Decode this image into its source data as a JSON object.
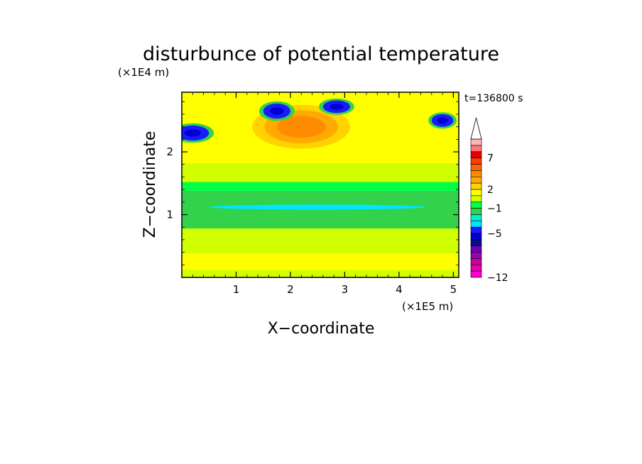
{
  "chart_data": {
    "type": "heatmap",
    "title": "disturbunce of potential temperature",
    "xlabel": "X−coordinate",
    "ylabel": "Z−coordinate",
    "x_unit": "(×1E5 m)",
    "y_unit": "(×1E4 m)",
    "time_label": "t=136800 s",
    "xlim": [
      0,
      5.1
    ],
    "ylim": [
      0,
      2.95
    ],
    "xticks": [
      1,
      2,
      3,
      4,
      5
    ],
    "yticks": [
      1,
      2
    ],
    "colorbar": {
      "levels": [
        -12,
        -11,
        -10,
        -9,
        -8,
        -7,
        -6,
        -5,
        -4,
        -3,
        -2,
        -1,
        0,
        1,
        2,
        3,
        4,
        5,
        6,
        7,
        8,
        9,
        10
      ],
      "labels": [
        "−12",
        "−5",
        "−1",
        "2",
        "7"
      ],
      "label_values": [
        -12,
        -5,
        -1,
        2,
        7
      ],
      "colors": [
        "#ff00cc",
        "#e600b4",
        "#cc0099",
        "#9900b3",
        "#6e00b5",
        "#0a0a8c",
        "#0000d2",
        "#1a1aff",
        "#00e6ff",
        "#00f0c8",
        "#32d24b",
        "#00ff46",
        "#d2ff00",
        "#ffff00",
        "#ffd200",
        "#ffaa00",
        "#ff8c00",
        "#ff6400",
        "#ff3c00",
        "#e60000",
        "#ff7878",
        "#ffb4b4",
        "#ffffff"
      ],
      "extend": "max"
    },
    "bands": [
      {
        "z": [
          0.0,
          0.12
        ],
        "value": 0.5
      },
      {
        "z": [
          0.12,
          0.38
        ],
        "value": 1.5
      },
      {
        "z": [
          0.38,
          0.58
        ],
        "value": 0.5
      },
      {
        "z": [
          0.58,
          0.78
        ],
        "value": 0.5
      },
      {
        "z": [
          0.78,
          1.38
        ],
        "value": -1.5
      },
      {
        "z": [
          1.38,
          1.52
        ],
        "value": -0.5
      },
      {
        "z": [
          1.52,
          1.82
        ],
        "value": 0.5
      },
      {
        "z": [
          1.82,
          2.3
        ],
        "value": 1.5
      },
      {
        "z": [
          2.3,
          2.95
        ],
        "value": 1.0
      }
    ],
    "features": [
      {
        "kind": "warm_core",
        "center": [
          2.2,
          2.4
        ],
        "radius": [
          0.9,
          0.35
        ],
        "value": 4
      },
      {
        "kind": "cold_cell",
        "center": [
          1.75,
          2.65
        ],
        "radius": [
          0.25,
          0.12
        ],
        "value": -5
      },
      {
        "kind": "cold_cell",
        "center": [
          2.85,
          2.72
        ],
        "radius": [
          0.25,
          0.1
        ],
        "value": -5
      },
      {
        "kind": "cold_cell",
        "center": [
          0.2,
          2.3
        ],
        "radius": [
          0.3,
          0.12
        ],
        "value": -5
      },
      {
        "kind": "cold_cell",
        "center": [
          4.8,
          2.5
        ],
        "radius": [
          0.2,
          0.1
        ],
        "value": -5
      },
      {
        "kind": "cold_streak",
        "center": [
          2.5,
          1.12
        ],
        "radius": [
          2.0,
          0.04
        ],
        "value": -4
      }
    ]
  }
}
